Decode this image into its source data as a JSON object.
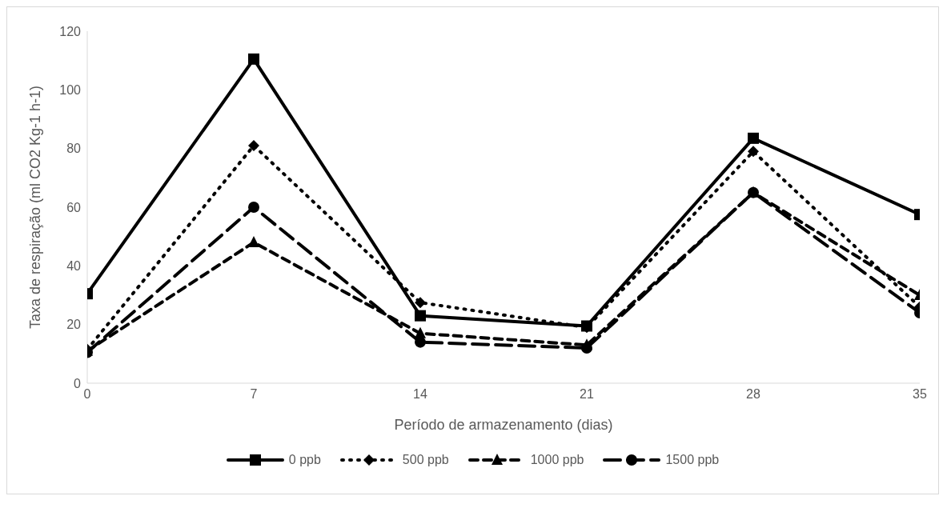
{
  "chart_data": {
    "type": "line",
    "xlabel": "Período de armazenamento (dias)",
    "ylabel": "Taxa de respiração (ml CO2  Kg-1 h-1)",
    "x": [
      0,
      7,
      14,
      21,
      28,
      35
    ],
    "xlim": [
      0,
      35
    ],
    "xticks": [
      0,
      7,
      14,
      21,
      28,
      35
    ],
    "ylim": [
      0,
      120
    ],
    "yticks": [
      0,
      20,
      40,
      60,
      80,
      100,
      120
    ],
    "grid": false,
    "legend": "bottom",
    "series": [
      {
        "name": "0 ppb",
        "color": "#000000",
        "marker": "square",
        "line_style": "solid",
        "values": [
          30.5,
          110.5,
          23,
          19.5,
          83.5,
          57.5
        ]
      },
      {
        "name": "500 ppb",
        "color": "#000000",
        "marker": "diamond",
        "line_style": "dotted",
        "values": [
          11.5,
          81,
          27.5,
          19,
          79,
          26
        ]
      },
      {
        "name": "1000 ppb",
        "color": "#000000",
        "marker": "triangle",
        "line_style": "dashed",
        "values": [
          11,
          48,
          17,
          13,
          65,
          30
        ]
      },
      {
        "name": "1500 ppb",
        "color": "#000000",
        "marker": "circle",
        "line_style": "dashed",
        "values": [
          10.5,
          60,
          14,
          12,
          65,
          24
        ]
      }
    ]
  }
}
